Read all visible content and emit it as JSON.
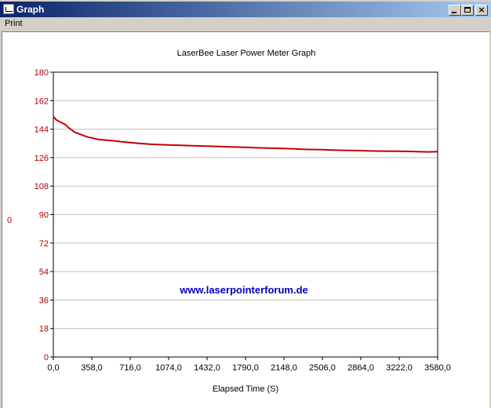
{
  "window": {
    "title": "Graph",
    "minimize_icon": "minimize-icon",
    "maximize_icon": "maximize-icon",
    "close_label": "×"
  },
  "menu": {
    "print_label": "Print"
  },
  "colors": {
    "series": "#c00000",
    "y_ticks": "#b00000",
    "watermark": "#0000c0",
    "grid": "#c0c0c0"
  },
  "watermark": "www.laserpointerforum.de",
  "chart_data": {
    "type": "line",
    "title": "LaserBee Laser Power Meter Graph",
    "xlabel": "Elapsed Time (S)",
    "ylabel": "0",
    "xlim": [
      0,
      3580
    ],
    "ylim": [
      0,
      180
    ],
    "x_ticks": [
      "0,0",
      "358,0",
      "716,0",
      "1074,0",
      "1432,0",
      "1790,0",
      "2148,0",
      "2506,0",
      "2864,0",
      "3222,0",
      "3580,0"
    ],
    "y_ticks": [
      "180",
      "162",
      "144",
      "126",
      "108",
      "90",
      "72",
      "54",
      "36",
      "18",
      "0"
    ],
    "grid": "horizontal",
    "series": [
      {
        "x": [
          0,
          25,
          50,
          80,
          110,
          140,
          170,
          200,
          240,
          280,
          320,
          358,
          420,
          500,
          580,
          640,
          716,
          800,
          900,
          1000,
          1074,
          1200,
          1300,
          1432,
          1550,
          1650,
          1790,
          1900,
          2000,
          2148,
          2250,
          2350,
          2506,
          2600,
          2700,
          2864,
          2950,
          3050,
          3222,
          3320,
          3420,
          3500,
          3580
        ],
        "y": [
          152,
          150,
          149,
          148,
          147,
          145,
          143.5,
          142,
          141,
          140,
          139,
          138.5,
          137.5,
          137,
          136.5,
          136,
          135.5,
          135,
          134.5,
          134.2,
          134,
          133.8,
          133.5,
          133.3,
          133,
          132.8,
          132.5,
          132.2,
          132,
          131.8,
          131.5,
          131.2,
          131,
          130.8,
          130.6,
          130.4,
          130.2,
          130.1,
          130,
          129.9,
          129.7,
          129.6,
          129.8
        ]
      }
    ]
  }
}
